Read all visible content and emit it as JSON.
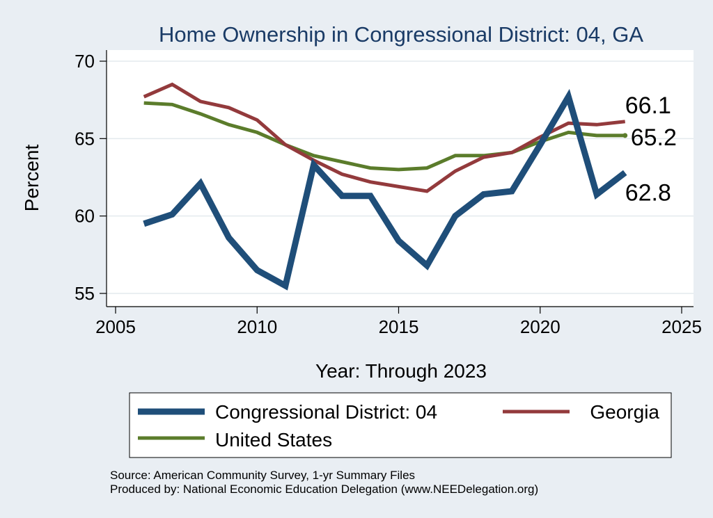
{
  "chart_data": {
    "type": "line",
    "title": "Home Ownership in Congressional District:  04, GA",
    "xlabel": "Year: Through 2023",
    "ylabel": "Percent",
    "xlim": [
      2005,
      2025
    ],
    "ylim": [
      55,
      70
    ],
    "xticks": [
      2005,
      2010,
      2015,
      2020,
      2025
    ],
    "yticks": [
      55,
      60,
      65,
      70
    ],
    "x": [
      2006,
      2007,
      2008,
      2009,
      2010,
      2011,
      2012,
      2013,
      2014,
      2015,
      2016,
      2017,
      2018,
      2019,
      2020,
      2021,
      2022,
      2023
    ],
    "series": [
      {
        "name": "Congressional District:  04",
        "color": "#1f4e79",
        "values": [
          59.5,
          60.1,
          62.1,
          58.6,
          56.5,
          55.5,
          63.3,
          61.3,
          61.3,
          58.4,
          56.8,
          60.0,
          61.4,
          61.6,
          64.6,
          67.7,
          61.4,
          62.8
        ],
        "end_label": "62.8"
      },
      {
        "name": "Georgia",
        "color": "#933a3c",
        "values": [
          67.7,
          68.5,
          67.4,
          67.0,
          66.2,
          64.6,
          63.6,
          62.7,
          62.2,
          61.9,
          61.6,
          62.9,
          63.8,
          64.1,
          65.1,
          66.0,
          65.9,
          66.1
        ],
        "end_label": "66.1"
      },
      {
        "name": "United States",
        "color": "#5b7c2b",
        "values": [
          67.3,
          67.2,
          66.6,
          65.9,
          65.4,
          64.6,
          63.9,
          63.5,
          63.1,
          63.0,
          63.1,
          63.9,
          63.9,
          64.1,
          64.8,
          65.4,
          65.2,
          65.2
        ],
        "end_label": "65.2"
      }
    ],
    "legend": {
      "position": "bottom",
      "items": [
        "Congressional District:  04",
        "Georgia",
        "United States"
      ]
    }
  },
  "source": {
    "line1": "Source: American Community Survey, 1-yr Summary Files",
    "line2": "Produced by: National Economic Education Delegation (www.NEEDelegation.org)"
  }
}
